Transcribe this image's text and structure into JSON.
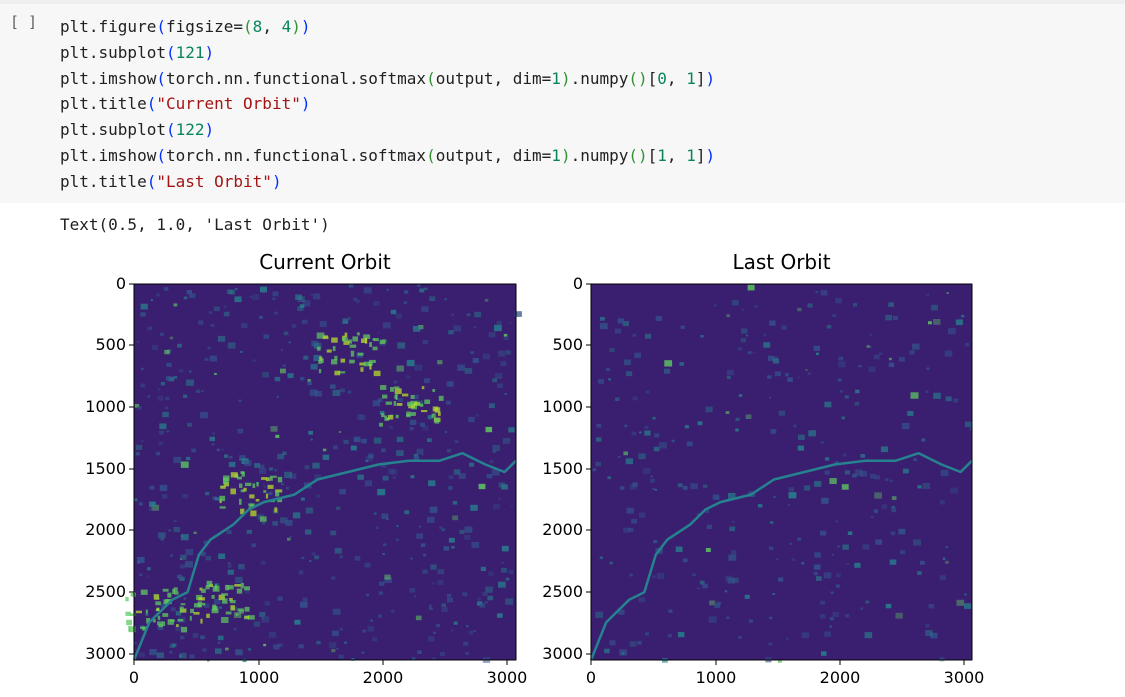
{
  "cell": {
    "run_button": "[ ]",
    "code_lines": [
      [
        {
          "t": "plt.figure"
        },
        {
          "t": "(",
          "c": "c-p"
        },
        {
          "t": "figsize="
        },
        {
          "t": "(",
          "c": "c-p2"
        },
        {
          "t": "8",
          "c": "c-num"
        },
        {
          "t": ", "
        },
        {
          "t": "4",
          "c": "c-num"
        },
        {
          "t": ")",
          "c": "c-p2"
        },
        {
          "t": ")",
          "c": "c-p"
        }
      ],
      [
        {
          "t": "plt.subplot"
        },
        {
          "t": "(",
          "c": "c-p"
        },
        {
          "t": "121",
          "c": "c-num"
        },
        {
          "t": ")",
          "c": "c-p"
        }
      ],
      [
        {
          "t": "plt.imshow"
        },
        {
          "t": "(",
          "c": "c-p"
        },
        {
          "t": "torch.nn.functional.softmax"
        },
        {
          "t": "(",
          "c": "c-p2"
        },
        {
          "t": "output, dim="
        },
        {
          "t": "1",
          "c": "c-num"
        },
        {
          "t": ")",
          "c": "c-p2"
        },
        {
          "t": ".numpy"
        },
        {
          "t": "()",
          "c": "c-p2"
        },
        {
          "t": "["
        },
        {
          "t": "0",
          "c": "c-num"
        },
        {
          "t": ", "
        },
        {
          "t": "1",
          "c": "c-num"
        },
        {
          "t": "]"
        },
        {
          "t": ")",
          "c": "c-p"
        }
      ],
      [
        {
          "t": "plt.title"
        },
        {
          "t": "(",
          "c": "c-p"
        },
        {
          "t": "\"Current Orbit\"",
          "c": "c-str"
        },
        {
          "t": ")",
          "c": "c-p"
        }
      ],
      [
        {
          "t": "plt.subplot"
        },
        {
          "t": "(",
          "c": "c-p"
        },
        {
          "t": "122",
          "c": "c-num"
        },
        {
          "t": ")",
          "c": "c-p"
        }
      ],
      [
        {
          "t": "plt.imshow"
        },
        {
          "t": "(",
          "c": "c-p"
        },
        {
          "t": "torch.nn.functional.softmax"
        },
        {
          "t": "(",
          "c": "c-p2"
        },
        {
          "t": "output, dim="
        },
        {
          "t": "1",
          "c": "c-num"
        },
        {
          "t": ")",
          "c": "c-p2"
        },
        {
          "t": ".numpy"
        },
        {
          "t": "()",
          "c": "c-p2"
        },
        {
          "t": "["
        },
        {
          "t": "1",
          "c": "c-num"
        },
        {
          "t": ", "
        },
        {
          "t": "1",
          "c": "c-num"
        },
        {
          "t": "]"
        },
        {
          "t": ")",
          "c": "c-p"
        }
      ],
      [
        {
          "t": "plt.title"
        },
        {
          "t": "(",
          "c": "c-p"
        },
        {
          "t": "\"Last Orbit\"",
          "c": "c-str"
        },
        {
          "t": ")",
          "c": "c-p"
        }
      ]
    ]
  },
  "output": {
    "text": "Text(0.5, 1.0, 'Last Orbit')"
  },
  "figure": {
    "plots": [
      {
        "title": "Current Orbit",
        "intensity": 1.0
      },
      {
        "title": "Last Orbit",
        "intensity": 0.6
      }
    ],
    "yticks": [
      "0",
      "500",
      "1000",
      "1500",
      "2000",
      "2500",
      "3000"
    ],
    "xticks": [
      "0",
      "1000",
      "2000",
      "3000"
    ],
    "colors": {
      "bg": "#3a1f70",
      "mid": "#26828e",
      "high": "#5ec962",
      "peak": "#b5de2b"
    }
  }
}
